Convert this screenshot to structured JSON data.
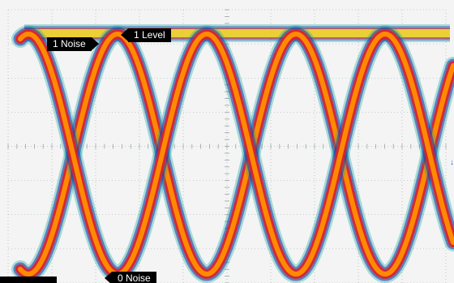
{
  "markers": {
    "one_noise": "1 Noise",
    "one_level": "1 Level",
    "zero_noise": "0 Noise"
  },
  "colors": {
    "background": "#f4f4f4",
    "grid": "#9aa3a6",
    "trace_core": "#ff8a00",
    "trace_mid": "#e0202a",
    "trace_edge": "#2233aa",
    "trace_outer": "#10a8a0",
    "top_band": "#f2dc30",
    "channel_marker": "#2a6fc9"
  },
  "icons": {
    "channel_marker": "ground-reference-icon"
  }
}
